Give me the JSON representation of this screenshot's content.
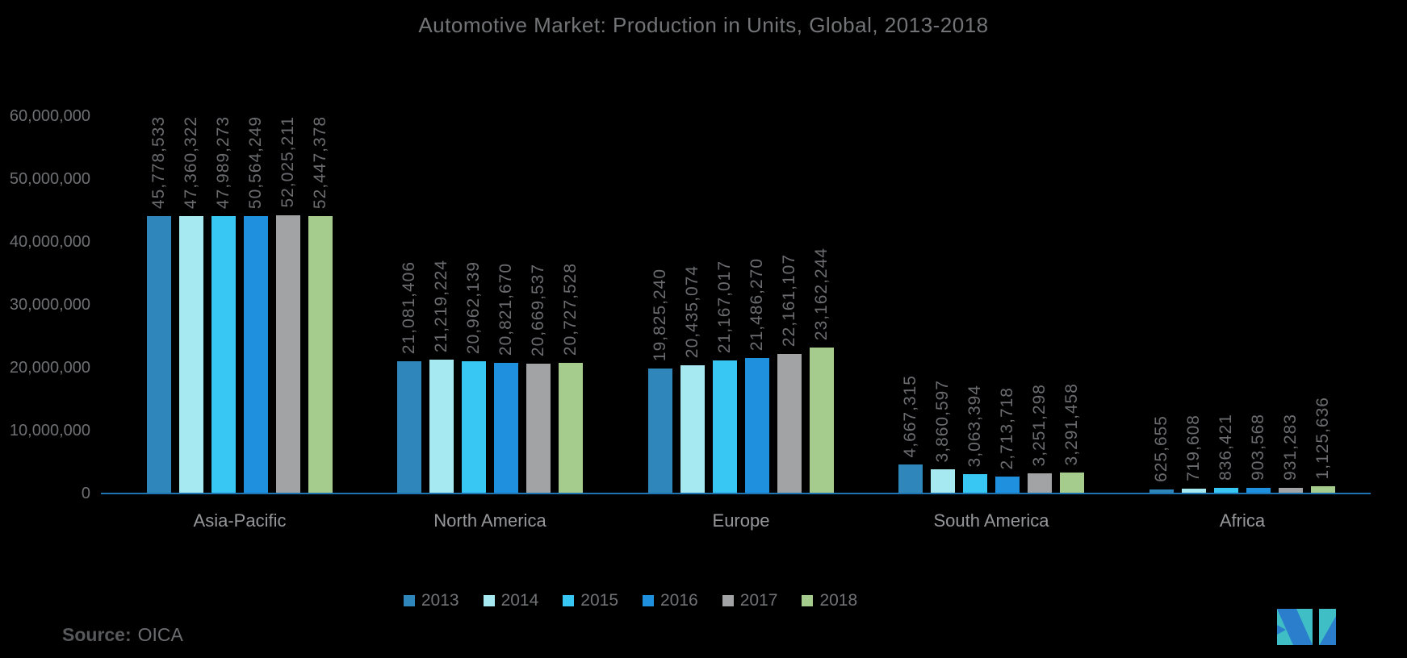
{
  "title": "Automotive Market: Production in Units, Global, 2013-2018",
  "chart_data": {
    "type": "bar",
    "title": "Automotive Market: Production in Units, Global, 2013-2018",
    "categories": [
      "Asia-Pacific",
      "North America",
      "Europe",
      "South America",
      "Africa"
    ],
    "series": [
      {
        "name": "2013",
        "color": "#2E86BA",
        "values": [
          45778533,
          21081406,
          19825240,
          4667315,
          625655
        ]
      },
      {
        "name": "2014",
        "color": "#A6E9F0",
        "values": [
          47360322,
          21219224,
          20435074,
          3860597,
          719608
        ]
      },
      {
        "name": "2015",
        "color": "#38C6F2",
        "values": [
          47989273,
          20962139,
          21167017,
          3063394,
          836421
        ]
      },
      {
        "name": "2016",
        "color": "#1E90DD",
        "values": [
          50564249,
          20821670,
          21486270,
          2713718,
          903568
        ]
      },
      {
        "name": "2017",
        "color": "#A2A3A5",
        "values": [
          52025211,
          20669537,
          22161107,
          3251298,
          931283
        ]
      },
      {
        "name": "2018",
        "color": "#A5CC8C",
        "values": [
          52447378,
          20727528,
          23162244,
          3291458,
          1125636
        ]
      }
    ],
    "y_ticks": [
      "0",
      "10,000,000",
      "20,000,000",
      "30,000,000",
      "40,000,000",
      "50,000,000",
      "60,000,000"
    ],
    "ylim": [
      0,
      60000000
    ],
    "grid": false,
    "legend_position": "bottom",
    "value_labels": "rotated-above-bars",
    "axis_line_color": "#1E74B0",
    "background": "#000000"
  },
  "footer": {
    "source_label": "Source:",
    "source_value": "OICA"
  },
  "logo": {
    "name": "mordor-intelligence-logo",
    "teal": "#3FBFC5",
    "blue": "#2B7ECC"
  }
}
